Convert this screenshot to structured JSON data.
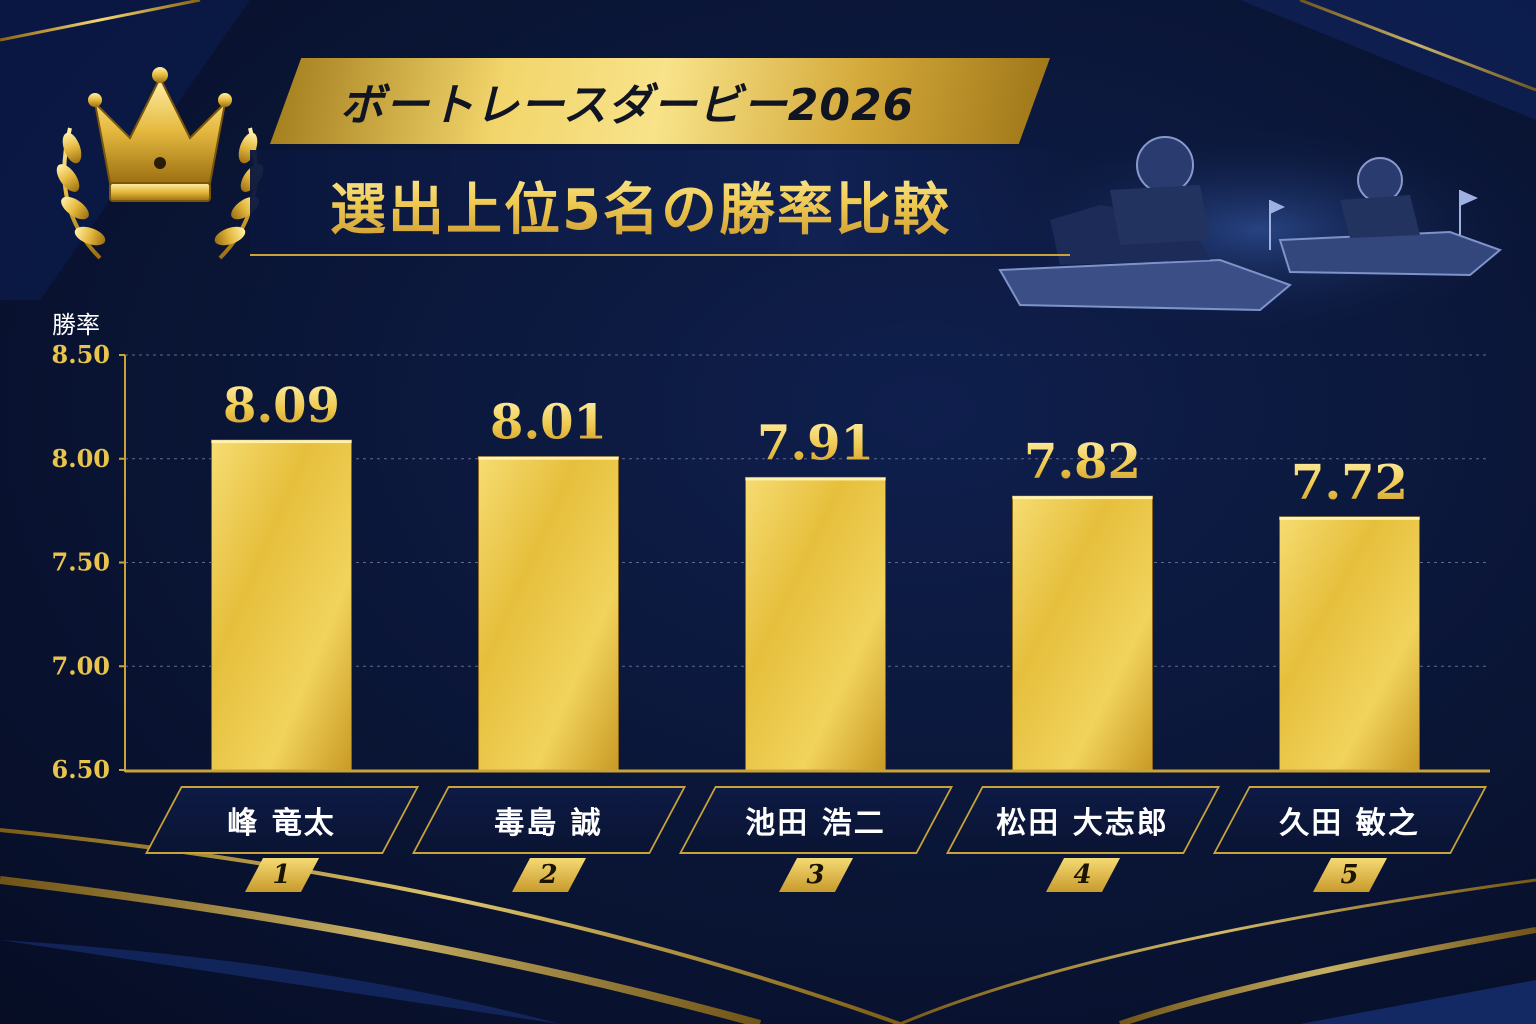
{
  "header": {
    "title": "ボートレースダービー2026",
    "subtitle": "選出上位5名の勝率比較"
  },
  "icons": [
    "crown-icon",
    "laurel-icon"
  ],
  "colors": {
    "background": "#0a1535",
    "gold": "#e9c44c",
    "gold_light": "#f8e38a",
    "gold_dark": "#b8891f",
    "label_text": "#ffffff"
  },
  "chart_data": {
    "type": "bar",
    "ylabel": "勝率",
    "ylim": [
      6.5,
      8.5
    ],
    "yticks": [
      "8.50",
      "8.00",
      "7.50",
      "7.00",
      "6.50"
    ],
    "grid": true,
    "categories": [
      "峰 竜太",
      "毒島 誠",
      "池田 浩二",
      "松田 大志郎",
      "久田 敏之"
    ],
    "ranks": [
      "1",
      "2",
      "3",
      "4",
      "5"
    ],
    "values": [
      8.09,
      8.01,
      7.91,
      7.82,
      7.72
    ],
    "value_labels": [
      "8.09",
      "8.01",
      "7.91",
      "7.82",
      "7.72"
    ]
  }
}
